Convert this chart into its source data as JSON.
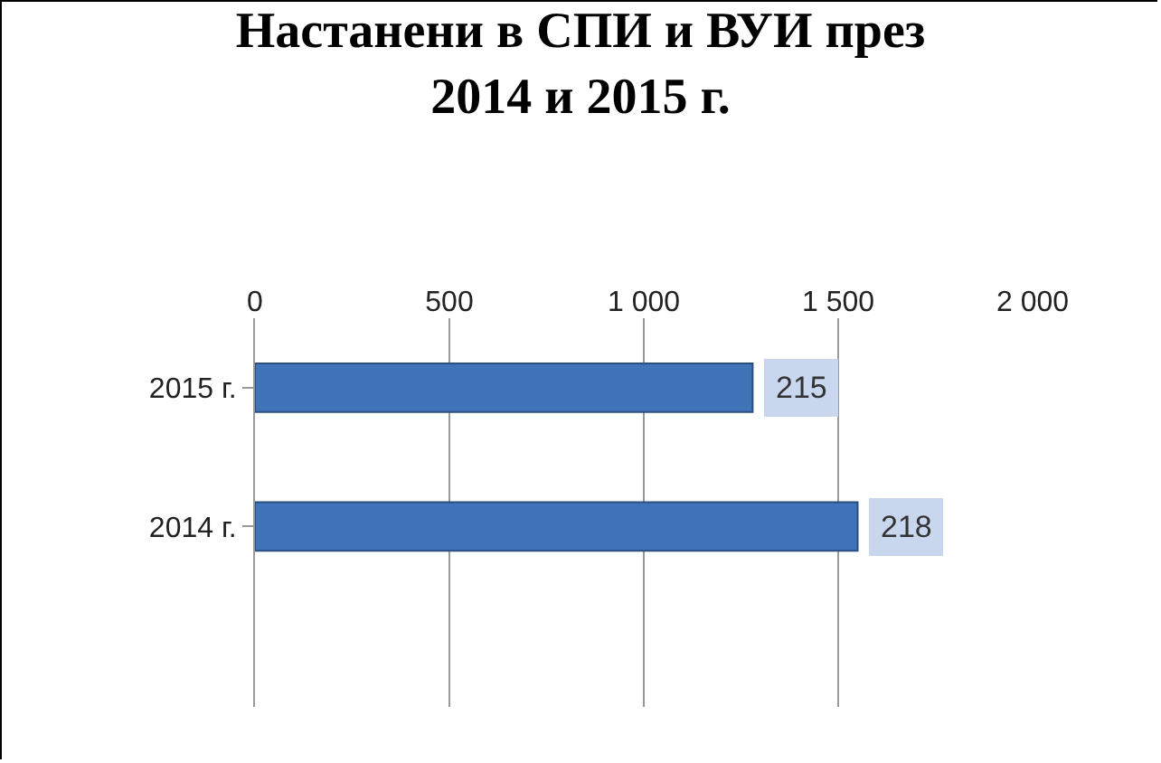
{
  "chart_data": {
    "type": "bar",
    "orientation": "horizontal",
    "title": "Настанени в СПИ и ВУИ през\n2014 и 2015 г.",
    "categories": [
      "2015 г.",
      "2014 г."
    ],
    "values": [
      1280,
      1550
    ],
    "annotations": [
      {
        "text": "215",
        "x": 1280,
        "y": "2015 г."
      },
      {
        "text": "218",
        "x": 1550,
        "y": "2014 г."
      }
    ],
    "color": "#3f74b8",
    "xlim": [
      0,
      2000
    ],
    "xticks": [
      0,
      500,
      {
        "value": 1000,
        "label": "1 000"
      },
      {
        "value": 1500,
        "label": "1 500"
      },
      {
        "value": 2000,
        "label": "2 000"
      }
    ],
    "grid": "x"
  }
}
